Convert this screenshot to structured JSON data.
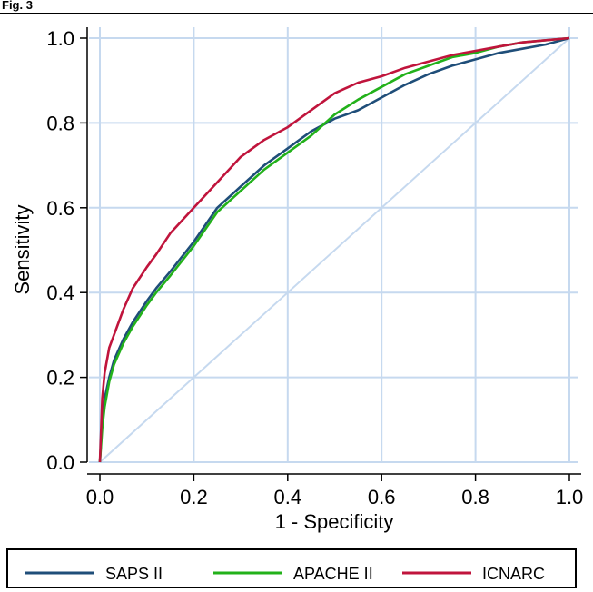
{
  "figure": {
    "label": "Fig. 3"
  },
  "chart_data": {
    "type": "line",
    "title": "",
    "xlabel": "1 - Specificity",
    "ylabel": "Sensitivity",
    "xlim": [
      0,
      1
    ],
    "ylim": [
      0,
      1
    ],
    "xticks": [
      "0.0",
      "0.2",
      "0.4",
      "0.6",
      "0.8",
      "1.0"
    ],
    "yticks": [
      "0.0",
      "0.2",
      "0.4",
      "0.6",
      "0.8",
      "1.0"
    ],
    "grid": true,
    "legend_position": "bottom",
    "reference_line": {
      "x": [
        0,
        1
      ],
      "y": [
        0,
        1
      ],
      "color": "#c6d9ef"
    },
    "series": [
      {
        "name": "SAPS II",
        "color": "#1f4e79",
        "x": [
          0,
          0.005,
          0.01,
          0.02,
          0.03,
          0.05,
          0.07,
          0.1,
          0.12,
          0.15,
          0.2,
          0.25,
          0.3,
          0.35,
          0.4,
          0.45,
          0.5,
          0.55,
          0.6,
          0.65,
          0.7,
          0.75,
          0.8,
          0.85,
          0.9,
          0.95,
          1.0
        ],
        "y": [
          0,
          0.1,
          0.15,
          0.2,
          0.24,
          0.29,
          0.33,
          0.38,
          0.41,
          0.45,
          0.52,
          0.6,
          0.65,
          0.7,
          0.74,
          0.78,
          0.81,
          0.83,
          0.86,
          0.89,
          0.915,
          0.935,
          0.95,
          0.965,
          0.975,
          0.985,
          1.0
        ]
      },
      {
        "name": "APACHE II",
        "color": "#22b11a",
        "x": [
          0,
          0.005,
          0.01,
          0.02,
          0.03,
          0.05,
          0.07,
          0.1,
          0.12,
          0.15,
          0.2,
          0.25,
          0.3,
          0.35,
          0.4,
          0.45,
          0.5,
          0.55,
          0.6,
          0.65,
          0.7,
          0.75,
          0.8,
          0.85,
          0.9,
          0.95,
          1.0
        ],
        "y": [
          0,
          0.08,
          0.13,
          0.19,
          0.23,
          0.28,
          0.32,
          0.37,
          0.4,
          0.44,
          0.51,
          0.59,
          0.64,
          0.69,
          0.73,
          0.77,
          0.82,
          0.855,
          0.885,
          0.915,
          0.935,
          0.955,
          0.965,
          0.98,
          0.99,
          0.995,
          1.0
        ]
      },
      {
        "name": "ICNARC",
        "color": "#c0143c",
        "x": [
          0,
          0.005,
          0.01,
          0.02,
          0.03,
          0.05,
          0.07,
          0.1,
          0.12,
          0.15,
          0.2,
          0.25,
          0.3,
          0.35,
          0.4,
          0.45,
          0.5,
          0.55,
          0.6,
          0.65,
          0.7,
          0.75,
          0.8,
          0.85,
          0.9,
          0.95,
          1.0
        ],
        "y": [
          0,
          0.15,
          0.21,
          0.27,
          0.3,
          0.36,
          0.41,
          0.46,
          0.49,
          0.54,
          0.6,
          0.66,
          0.72,
          0.76,
          0.79,
          0.83,
          0.87,
          0.895,
          0.91,
          0.93,
          0.945,
          0.96,
          0.97,
          0.98,
          0.99,
          0.995,
          1.0
        ]
      }
    ]
  }
}
